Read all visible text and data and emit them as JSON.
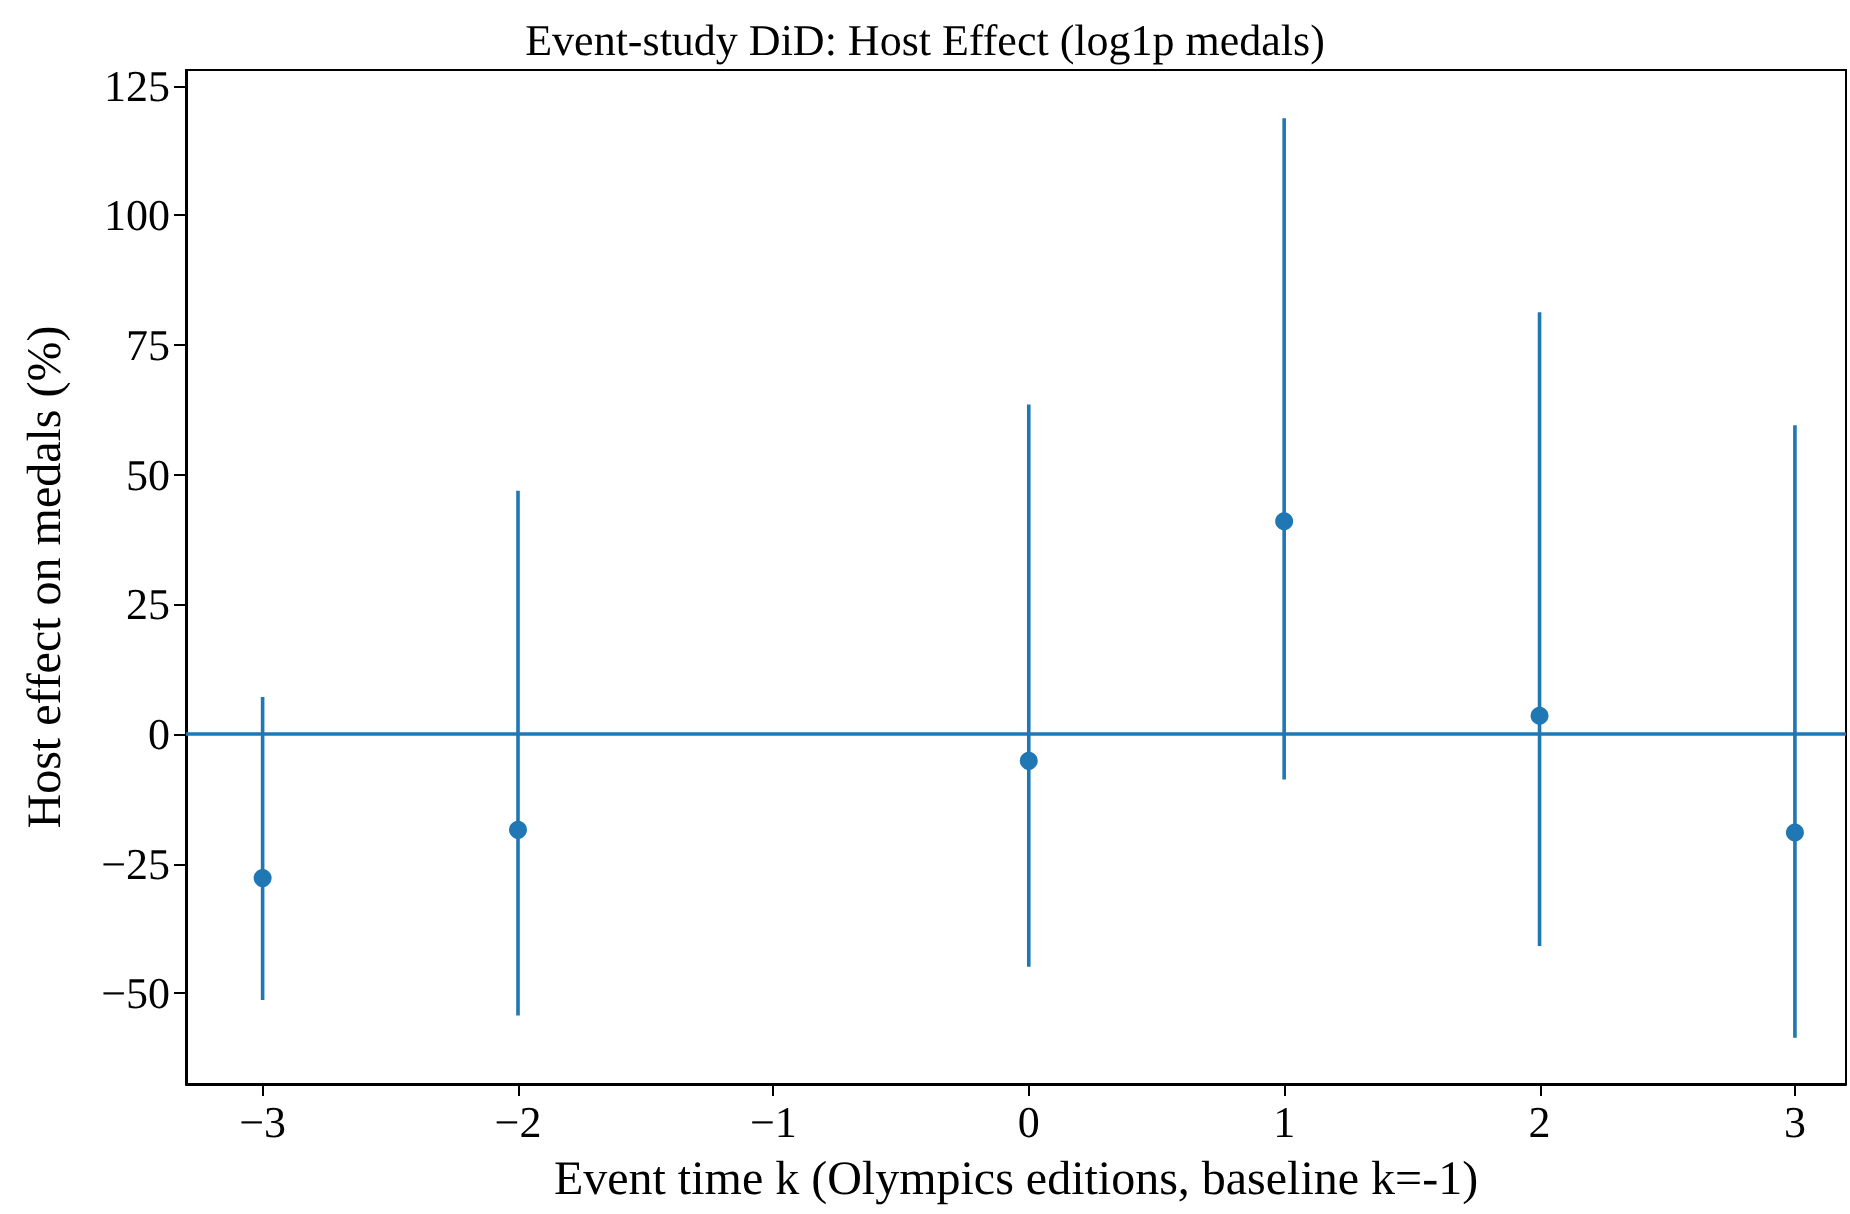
{
  "chart_data": {
    "type": "scatter",
    "title": "Event-study DiD: Host Effect (log1p medals)",
    "xlabel": "Event time k (Olympics editions, baseline k=-1)",
    "ylabel": "Host effect on medals (%)",
    "x": [
      -3,
      -2,
      0,
      1,
      2,
      3
    ],
    "series": [
      {
        "color": "#1f77b4",
        "values": [
          -27.8,
          -18.5,
          -5.2,
          41.0,
          3.5,
          -19.0
        ],
        "errors": [
          [
            -51.3,
            7.1
          ],
          [
            -54.3,
            46.9
          ],
          [
            -44.9,
            63.5
          ],
          [
            -8.8,
            118.7
          ],
          [
            -40.9,
            81.3
          ],
          [
            -58.6,
            59.5
          ]
        ]
      }
    ],
    "xlim": [
      -3.3,
      3.2
    ],
    "ylim": [
      -67.5,
      128
    ],
    "xticks": [
      {
        "value": -3,
        "label": "−3"
      },
      {
        "value": -2,
        "label": "−2"
      },
      {
        "value": -1,
        "label": "−1"
      },
      0,
      1,
      2,
      3
    ],
    "yticks": [
      {
        "value": -50,
        "label": "−50"
      },
      {
        "value": -25,
        "label": "−25"
      },
      0,
      25,
      50,
      75,
      100,
      125
    ],
    "ref_lines": [
      {
        "axis": "y",
        "value": 0,
        "color": "#1f77b4",
        "line_style": "solid"
      }
    ],
    "marker": "circle",
    "grid": false
  }
}
